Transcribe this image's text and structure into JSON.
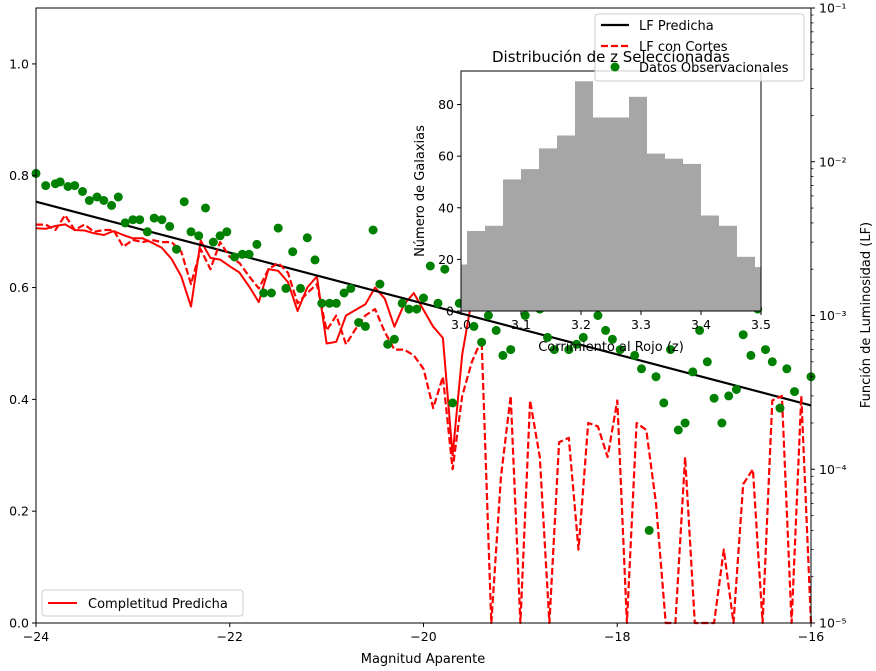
{
  "chart_data": [
    {
      "type": "line",
      "xlabel": "Magnitud Aparente",
      "ylabel_right": "Función de Luminosidad (LF)",
      "xlim": [
        -24,
        -16
      ],
      "ylim_left": [
        0,
        1.1
      ],
      "ylim_right": [
        1e-05,
        0.1
      ],
      "right_scale": "log",
      "x_ticks": [
        "−24",
        "−22",
        "−20",
        "−18",
        "−16"
      ],
      "x_tick_values": [
        -24,
        -22,
        -20,
        -18,
        -16
      ],
      "y_left_ticks": [
        "0.0",
        "0.2",
        "0.4",
        "0.6",
        "0.8",
        "1.0"
      ],
      "y_left_tick_values": [
        0,
        0.2,
        0.4,
        0.6,
        0.8,
        1.0
      ],
      "y_right_ticks": [
        "10⁻⁵",
        "10⁻⁴",
        "10⁻³",
        "10⁻²",
        "10⁻¹"
      ],
      "y_right_tick_values": [
        1e-05,
        0.0001,
        0.001,
        0.01,
        0.1
      ],
      "legend_left": {
        "position": "lower-left",
        "entries": [
          {
            "name": "Completitud Predicha",
            "color": "#ff0000",
            "style": "solid"
          }
        ]
      },
      "legend_right": {
        "position": "upper-right",
        "entries": [
          {
            "name": "LF Predicha",
            "color": "#000000",
            "style": "solid"
          },
          {
            "name": "LF con Cortes",
            "color": "#ff0000",
            "style": "dashed"
          },
          {
            "name": "Datos Observacionales",
            "color": "#008000",
            "style": "marker"
          }
        ]
      },
      "series": [
        {
          "name": "Completitud Predicha",
          "axis": "left",
          "color": "#ff0000",
          "x": [
            -24,
            -23.9,
            -23.8,
            -23.7,
            -23.6,
            -23.5,
            -23.4,
            -23.3,
            -23.2,
            -23.1,
            -23.0,
            -22.9,
            -22.8,
            -22.7,
            -22.6,
            -22.5,
            -22.4,
            -22.3,
            -22.2,
            -22.1,
            -22.0,
            -21.9,
            -21.8,
            -21.7,
            -21.6,
            -21.5,
            -21.4,
            -21.3,
            -21.2,
            -21.1,
            -21.0,
            -20.9,
            -20.8,
            -20.7,
            -20.6,
            -20.5,
            -20.4,
            -20.3,
            -20.2,
            -20.1,
            -20.0,
            -19.9,
            -19.8,
            -19.7,
            -19.6,
            -19.5
          ],
          "y": [
            0.706,
            0.705,
            0.71,
            0.713,
            0.703,
            0.702,
            0.697,
            0.694,
            0.701,
            0.694,
            0.688,
            0.688,
            0.68,
            0.671,
            0.651,
            0.62,
            0.566,
            0.684,
            0.653,
            0.65,
            0.638,
            0.627,
            0.602,
            0.574,
            0.633,
            0.63,
            0.61,
            0.558,
            0.6,
            0.62,
            0.5,
            0.503,
            0.55,
            0.56,
            0.57,
            0.6,
            0.58,
            0.53,
            0.57,
            0.59,
            0.56,
            0.53,
            0.51,
            0.3,
            0.48,
            0.58
          ]
        },
        {
          "name": "LF Predicha",
          "axis": "right",
          "color": "#000000",
          "x": [
            -24,
            -16
          ],
          "y": [
            0.0055,
            0.00026
          ]
        },
        {
          "name": "LF con Cortes",
          "axis": "right",
          "color": "#ff0000",
          "x": [
            -24,
            -23.9,
            -23.8,
            -23.7,
            -23.6,
            -23.5,
            -23.4,
            -23.3,
            -23.2,
            -23.1,
            -23.0,
            -22.9,
            -22.8,
            -22.7,
            -22.6,
            -22.5,
            -22.4,
            -22.3,
            -22.2,
            -22.1,
            -22.0,
            -21.9,
            -21.8,
            -21.7,
            -21.6,
            -21.5,
            -21.4,
            -21.3,
            -21.2,
            -21.1,
            -21.0,
            -20.9,
            -20.8,
            -20.7,
            -20.6,
            -20.5,
            -20.4,
            -20.3,
            -20.2,
            -20.1,
            -20.0,
            -19.9,
            -19.8,
            -19.7,
            -19.6,
            -19.5,
            -19.4,
            -19.3,
            -19.2,
            -19.1,
            -19.0,
            -18.9,
            -18.8,
            -18.7,
            -18.6,
            -18.5,
            -18.4,
            -18.3,
            -18.2,
            -18.1,
            -18.0,
            -17.9,
            -17.8,
            -17.7,
            -17.6,
            -17.5,
            -17.4,
            -17.3,
            -17.2,
            -17.1,
            -17.0,
            -16.9,
            -16.8,
            -16.7,
            -16.6,
            -16.5,
            -16.4,
            -16.3,
            -16.2,
            -16.1,
            -16.0
          ],
          "y": [
            0.0039,
            0.0039,
            0.0036,
            0.0045,
            0.0036,
            0.0039,
            0.0035,
            0.0036,
            0.0036,
            0.0028,
            0.0031,
            0.003,
            0.0031,
            0.003,
            0.003,
            0.0026,
            0.0016,
            0.0027,
            0.002,
            0.003,
            0.0024,
            0.0022,
            0.0018,
            0.0015,
            0.002,
            0.0022,
            0.0019,
            0.0012,
            0.0014,
            0.0016,
            0.0008,
            0.001,
            0.00065,
            0.00082,
            0.001,
            0.0011,
            0.00078,
            0.0006,
            0.0006,
            0.00055,
            0.00045,
            0.00025,
            0.0004,
            0.0001,
            0.0003,
            0.0005,
            0.0007,
            1e-05,
            9e-05,
            0.0003,
            1e-05,
            0.00028,
            0.00012,
            1e-05,
            0.00015,
            0.00016,
            3e-05,
            0.0002,
            0.00019,
            0.00012,
            0.00028,
            1e-05,
            0.0002,
            0.00018,
            6e-05,
            1e-05,
            1e-05,
            0.00012,
            1e-05,
            1e-05,
            1e-05,
            3e-05,
            1e-05,
            8e-05,
            0.0001,
            1e-05,
            0.00028,
            0.0003,
            1e-05,
            0.0003,
            1e-05
          ]
        },
        {
          "name": "Datos Observacionales",
          "axis": "right",
          "color": "#008000",
          "x": [
            -24.0,
            -23.9,
            -23.8,
            -23.75,
            -23.67,
            -23.6,
            -23.52,
            -23.45,
            -23.37,
            -23.3,
            -23.22,
            -23.15,
            -23.08,
            -23.0,
            -22.93,
            -22.85,
            -22.78,
            -22.7,
            -22.62,
            -22.55,
            -22.47,
            -22.4,
            -22.32,
            -22.25,
            -22.17,
            -22.1,
            -22.03,
            -21.95,
            -21.87,
            -21.8,
            -21.72,
            -21.65,
            -21.57,
            -21.5,
            -21.42,
            -21.35,
            -21.27,
            -21.2,
            -21.12,
            -21.05,
            -20.97,
            -20.9,
            -20.82,
            -20.75,
            -20.67,
            -20.6,
            -20.52,
            -20.45,
            -20.37,
            -20.3,
            -20.22,
            -20.15,
            -20.07,
            -20.0,
            -19.93,
            -19.85,
            -19.78,
            -19.7,
            -19.63,
            -19.55,
            -19.48,
            -19.4,
            -19.33,
            -19.25,
            -19.18,
            -19.1,
            -19.03,
            -18.95,
            -18.88,
            -18.8,
            -18.72,
            -18.65,
            -18.57,
            -18.5,
            -18.42,
            -18.35,
            -18.27,
            -18.2,
            -18.12,
            -18.05,
            -17.97,
            -17.9,
            -17.82,
            -17.75,
            -17.67,
            -17.6,
            -17.52,
            -17.45,
            -17.37,
            -17.3,
            -17.22,
            -17.15,
            -17.07,
            -17.0,
            -16.92,
            -16.85,
            -16.77,
            -16.7,
            -16.62,
            -16.55,
            -16.47,
            -16.4,
            -16.32,
            -16.25,
            -16.17,
            -16.0
          ],
          "y": [
            0.0084,
            0.007,
            0.0072,
            0.0074,
            0.0069,
            0.007,
            0.0064,
            0.0056,
            0.0059,
            0.0056,
            0.0052,
            0.0059,
            0.004,
            0.0042,
            0.0042,
            0.0035,
            0.0043,
            0.0042,
            0.0038,
            0.0027,
            0.0055,
            0.0035,
            0.0033,
            0.005,
            0.003,
            0.0033,
            0.0035,
            0.0024,
            0.0025,
            0.0025,
            0.0029,
            0.0014,
            0.0014,
            0.0037,
            0.0015,
            0.0026,
            0.0015,
            0.0032,
            0.0023,
            0.0012,
            0.0012,
            0.0012,
            0.0014,
            0.0015,
            0.0009,
            0.00085,
            0.0036,
            0.0016,
            0.00065,
            0.0007,
            0.0012,
            0.0011,
            0.0011,
            0.0013,
            0.0021,
            0.0012,
            0.002,
            0.00027,
            0.0012,
            0.0012,
            0.00085,
            0.00067,
            0.001,
            0.0008,
            0.00055,
            0.0006,
            0.0012,
            0.001,
            0.0013,
            0.0011,
            0.00072,
            0.0006,
            0.0013,
            0.0006,
            0.00065,
            0.00072,
            0.0025,
            0.001,
            0.0008,
            0.0007,
            0.0006,
            0.0014,
            0.00055,
            0.00045,
            4e-05,
            0.0004,
            0.00027,
            0.0006,
            0.00018,
            0.0002,
            0.00043,
            0.0008,
            0.0005,
            0.00029,
            0.0002,
            0.0003,
            0.00033,
            0.00075,
            0.00055,
            0.0011,
            0.0006,
            0.0005,
            0.00025,
            0.00045,
            0.00032,
            0.0004
          ]
        }
      ]
    },
    {
      "type": "bar",
      "title": "Distribución de z Seleccionadas",
      "xlabel": "Corrimiento al Rojo (z)",
      "ylabel": "Número de Galaxias",
      "xlim": [
        3.0,
        3.5
      ],
      "ylim": [
        0,
        93
      ],
      "x_ticks": [
        "3.0",
        "3.1",
        "3.2",
        "3.3",
        "3.4",
        "3.5"
      ],
      "x_tick_values": [
        3.0,
        3.1,
        3.2,
        3.3,
        3.4,
        3.5
      ],
      "y_ticks": [
        "0",
        "20",
        "40",
        "60",
        "80"
      ],
      "y_tick_values": [
        0,
        20,
        40,
        60,
        80
      ],
      "color": "#a6a6a6",
      "bin_edges": [
        2.99,
        3.01,
        3.04,
        3.07,
        3.1,
        3.13,
        3.16,
        3.19,
        3.22,
        3.25,
        3.28,
        3.31,
        3.34,
        3.37,
        3.4,
        3.43,
        3.46,
        3.49,
        3.52
      ],
      "values": [
        18,
        31,
        33,
        51,
        55,
        63,
        68,
        89,
        75,
        75,
        83,
        61,
        59,
        57,
        37,
        33,
        21,
        17
      ]
    }
  ]
}
